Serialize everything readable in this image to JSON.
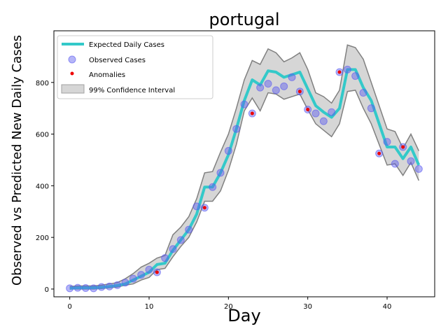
{
  "chart_data": {
    "type": "line",
    "title": "portugal",
    "xlabel": "Day",
    "ylabel": "Observed vs Predicted New Daily Cases",
    "xlim": [
      -2,
      46
    ],
    "ylim": [
      -30,
      1000
    ],
    "xticks": [
      0,
      10,
      20,
      30,
      40
    ],
    "yticks": [
      0,
      200,
      400,
      600,
      800
    ],
    "grid": false,
    "legend_position": "top-left",
    "legend": {
      "expected": "Expected Daily Cases",
      "observed": "Observed Cases",
      "anomalies": "Anomalies",
      "ci": "99% Confidence Interval"
    },
    "colors": {
      "expected": "#33c9c9",
      "observed": "#5a5af0",
      "anomaly": "#ee0000",
      "ci_fill": "#d6d6d6",
      "ci_edge": "#808080"
    },
    "x": [
      0,
      1,
      2,
      3,
      4,
      5,
      6,
      7,
      8,
      9,
      10,
      11,
      12,
      13,
      14,
      15,
      16,
      17,
      18,
      19,
      20,
      21,
      22,
      23,
      24,
      25,
      26,
      27,
      28,
      29,
      30,
      31,
      32,
      33,
      34,
      35,
      36,
      37,
      38,
      39,
      40,
      41,
      42,
      43,
      44
    ],
    "expected": [
      3,
      5,
      5,
      5,
      7,
      10,
      14,
      20,
      35,
      50,
      65,
      95,
      100,
      150,
      190,
      230,
      290,
      395,
      395,
      450,
      520,
      620,
      730,
      810,
      790,
      845,
      840,
      820,
      830,
      840,
      775,
      710,
      685,
      665,
      700,
      850,
      850,
      780,
      730,
      640,
      550,
      550,
      505,
      550,
      480
    ],
    "ci_upper": [
      10,
      12,
      12,
      12,
      15,
      20,
      25,
      40,
      60,
      85,
      100,
      120,
      130,
      210,
      240,
      280,
      350,
      450,
      455,
      530,
      600,
      700,
      810,
      885,
      870,
      930,
      915,
      880,
      895,
      915,
      850,
      760,
      745,
      720,
      770,
      945,
      935,
      890,
      800,
      710,
      620,
      610,
      545,
      600,
      535
    ],
    "ci_lower": [
      0,
      0,
      0,
      0,
      2,
      5,
      8,
      15,
      20,
      35,
      45,
      75,
      80,
      125,
      165,
      200,
      260,
      340,
      340,
      380,
      460,
      560,
      690,
      740,
      690,
      760,
      755,
      735,
      745,
      755,
      695,
      640,
      615,
      590,
      640,
      765,
      770,
      700,
      640,
      560,
      480,
      485,
      440,
      490,
      420
    ],
    "observed": [
      3,
      5,
      4,
      3,
      8,
      10,
      15,
      25,
      40,
      55,
      75,
      65,
      120,
      155,
      190,
      230,
      320,
      315,
      395,
      450,
      535,
      620,
      715,
      680,
      780,
      795,
      770,
      785,
      820,
      765,
      695,
      680,
      650,
      685,
      840,
      850,
      825,
      760,
      700,
      525,
      570,
      485,
      550,
      495,
      465
    ],
    "anomaly_days": [
      11,
      17,
      23,
      29,
      30,
      34,
      39,
      42
    ]
  }
}
